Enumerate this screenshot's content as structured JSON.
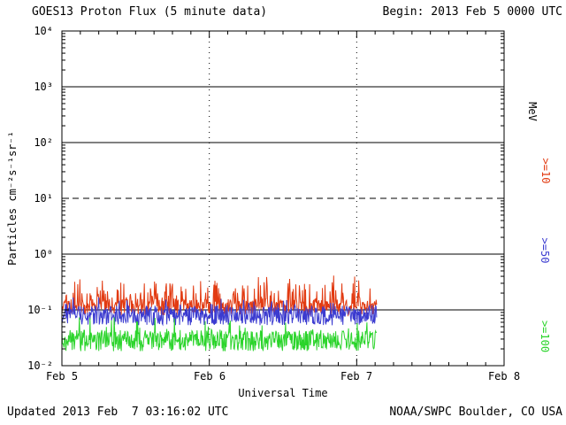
{
  "header": {
    "title": "GOES13 Proton Flux (5 minute data)",
    "begin_label": "Begin: 2013 Feb 5 0000 UTC"
  },
  "footer": {
    "updated": "Updated 2013 Feb  7 03:16:02 UTC",
    "source": "NOAA/SWPC Boulder, CO USA"
  },
  "chart_data": {
    "type": "line",
    "title": "GOES13 Proton Flux (5 minute data)",
    "xlabel": "Universal Time",
    "ylabel": "Particles cm⁻²s⁻¹sr⁻¹",
    "x_ticks": [
      "Feb 5",
      "Feb 6",
      "Feb 7",
      "Feb 8"
    ],
    "y_ticks": [
      "10⁴",
      "10³",
      "10²",
      "10¹",
      "10⁰",
      "10⁻¹",
      "10⁻²"
    ],
    "ylim_log10": [
      -2,
      4
    ],
    "x_range_days": [
      0,
      3
    ],
    "data_end_day": 2.14,
    "samples_per_day": 288,
    "threshold_line_log10": 1,
    "grid": "solid horizontal line each decade, dashed line at 10^1, dotted vertical lines at Feb 6 and Feb 7",
    "legend_position": "right edge, rotated",
    "right_labels": [
      {
        "text": "MeV",
        "color": "#000000"
      },
      {
        "text": ">=10",
        "color": "#e23b12"
      },
      {
        "text": ">=50",
        "color": "#3b3bd0"
      },
      {
        "text": ">=100",
        "color": "#2bd42b"
      }
    ],
    "series": [
      {
        "name": ">=10 MeV",
        "color": "#e23b12",
        "seed": 101,
        "center_log10": -0.95,
        "range_log10": 0.3,
        "spike_prob": 0.3,
        "spike_amp_log10": 0.45,
        "approx_flux_range": [
          0.07,
          0.45
        ]
      },
      {
        "name": ">=50 MeV",
        "color": "#3b3bd0",
        "seed": 202,
        "center_log10": -1.1,
        "range_log10": 0.35,
        "spike_prob": 0.15,
        "spike_amp_log10": 0.22,
        "approx_flux_range": [
          0.04,
          0.15
        ]
      },
      {
        "name": ">=100 MeV",
        "color": "#2bd42b",
        "seed": 303,
        "center_log10": -1.55,
        "range_log10": 0.38,
        "spike_prob": 0.12,
        "spike_amp_log10": 0.28,
        "approx_flux_range": [
          0.015,
          0.06
        ]
      }
    ],
    "summary": "Quiet background proton flux from 2013 Feb 5 00:00 UTC to ~Feb 7 03:16 UTC; no event thresholds crossed"
  }
}
